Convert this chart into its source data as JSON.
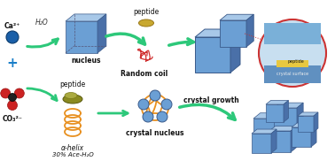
{
  "bg_color": "#ffffff",
  "top_row": {
    "arrow1_label": "H₂O",
    "nucleus_label": "nucleus",
    "peptide_label": "peptide",
    "coil_label": "Random coil",
    "inset_labels": [
      "peptide",
      "crystal surface"
    ]
  },
  "bottom_row": {
    "peptide_label": "peptide",
    "helix_label": "α-helix",
    "solvent_label": "30% Ace-H₂O",
    "crystal_nucleus_label": "crystal nucleus",
    "crystal_growth_label": "crystal growth"
  },
  "left_labels": [
    "Ca²⁺",
    "CO₃²⁻"
  ],
  "arrow_color": "#2dc87a",
  "cube_color": "#6b9fd4",
  "cube_dark": "#4a70a8",
  "cube_light": "#a8c8e8",
  "cube_edge": "#3a5a8a"
}
